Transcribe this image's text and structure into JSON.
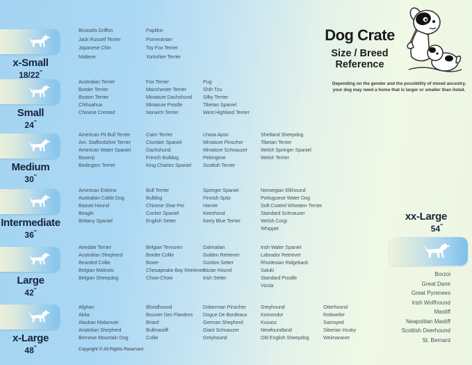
{
  "header": {
    "title": "Dog Crate",
    "subtitle_line1": "Size / Breed",
    "subtitle_line2": "Reference",
    "disclaimer_line1": "Depending on the gender and the possibility of mixed ancestry,",
    "disclaimer_line2": "your dog may need  a home that is larger or smaller than listed."
  },
  "colors": {
    "background_left": "#a4d4f2",
    "background_right": "#edf6e2",
    "tile_gradient_left": "#f0f2da",
    "tile_gradient_right": "#86c3ec",
    "size_label_text": "#16233d",
    "breed_text": "#44525f"
  },
  "sizes": [
    {
      "name": "x-Small",
      "dimension": "18/22",
      "unit": "″",
      "columns": [
        [
          "Brussels Griffon",
          "Jack Russell Terrier",
          "Japanese Chin",
          "Maltese"
        ],
        [
          "Papillon",
          "Pomeranian",
          "Toy Fox Terrier",
          "Yorkshire Terrier"
        ]
      ]
    },
    {
      "name": "Small",
      "dimension": "24",
      "unit": "″",
      "columns": [
        [
          "Australian Terrier",
          "Border Terrier",
          "Boston Terrier",
          "Chihuahua",
          "Chinese Crested"
        ],
        [
          "Fox Terrier",
          "Manchester Terrier",
          "Miniature Dachshund",
          "Miniature Poodle",
          "Norwich Terrier"
        ],
        [
          "Pug",
          "Shih Tzu",
          "Silky Terrier",
          "Tibetan Spaniel",
          "West Highland Terrier"
        ]
      ]
    },
    {
      "name": "Medium",
      "dimension": "30",
      "unit": "″",
      "columns": [
        [
          "American Pit Bull Terrier",
          "Am. Staffordshire Terrier",
          "American Water Spaniel",
          "Basenji",
          "Bedington Terrier"
        ],
        [
          "Cairn Terrier",
          "Clumber Spaniel",
          "Dachshund",
          "French Bulldog",
          "King Charles Spaniel"
        ],
        [
          "Lhasa Apso",
          "Miniature Pinscher",
          "Miniature Schnauzer",
          "Pekingese",
          "Scottish Terrier"
        ],
        [
          "Shetland Sheepdog",
          "Tibetan Terrier",
          "Welsh Springer Spaniel",
          "Welsh Terrier"
        ]
      ]
    },
    {
      "name": "Intermediate",
      "dimension": "36",
      "unit": "″",
      "columns": [
        [
          "American Eskimo",
          "Australian Cattle Dog",
          "Basset Hound",
          "Beagle",
          "Brittany Spaniel"
        ],
        [
          "Bull Terrier",
          "Bulldog",
          "Chinese Shar-Pei",
          "Cocker Spaniel",
          "English Setter"
        ],
        [
          "Springer Spaniel",
          "Finnish Spitz",
          "Harrier",
          "Keeshond",
          "Kerry Blue Terrier"
        ],
        [
          "Norwegian Elkhound",
          "Portuguese Water Dog",
          "Soft Coated Wheaten Terrier",
          "Standard Schnauzer",
          "Welsh Corgi",
          "Whippet"
        ]
      ]
    },
    {
      "name": "Large",
      "dimension": "42",
      "unit": "″",
      "columns": [
        [
          "Airedale Terrier",
          "Australian Shepherd",
          "Bearded Collie",
          "Belgian Malinois",
          "Belgian Sheepdog"
        ],
        [
          "Belgian Tervuren",
          "Border Collie",
          "Boxer",
          "Chesapeake Bay Retriever",
          "Chow-Chow"
        ],
        [
          "Dalmatian",
          "Golden Retriever",
          "Gordon Setter",
          "Ibizan Hound",
          "Irish Setter"
        ],
        [
          "Irish Water Spaniel",
          "Labrador Retriever",
          "Rhodesian Ridgeback",
          "Saluki",
          "Standard Poodle",
          "Vizsla"
        ]
      ]
    },
    {
      "name": "x-Large",
      "dimension": "48",
      "unit": "″",
      "columns": [
        [
          "Afghan",
          "Akita",
          "Alaskan Malamute",
          "Anatolian Shepherd",
          "Bernese Mountain Dog"
        ],
        [
          "Bloodhound",
          "Bouvier Des Flandres",
          "Briard",
          "Bullmastiff",
          "Collie"
        ],
        [
          "Doberman Pinscher",
          "Dogue De Bordeaux",
          "German Shepherd",
          "Giant Schnauzer",
          "Greyhound"
        ],
        [
          "Greyhound",
          "Komondor",
          "Kuvasz",
          "Newfoundland",
          "Old English Sheepdog"
        ],
        [
          "Otterhound",
          "Rottweiler",
          "Samoyed",
          "Siberian Husky",
          "Weimaraner"
        ]
      ]
    }
  ],
  "xx_large": {
    "name": "xx-Large",
    "dimension": "54",
    "unit": "″",
    "breeds": [
      "Borzoi",
      "Great Dane",
      "Great Pyrenees",
      "Irish Wolfhound",
      "Mastiff",
      "Neapolitan Mastiff",
      "Scottish Deerhound",
      "St. Bernard"
    ]
  },
  "footer": {
    "copyright": "Copyright © All Rights Reserved"
  }
}
